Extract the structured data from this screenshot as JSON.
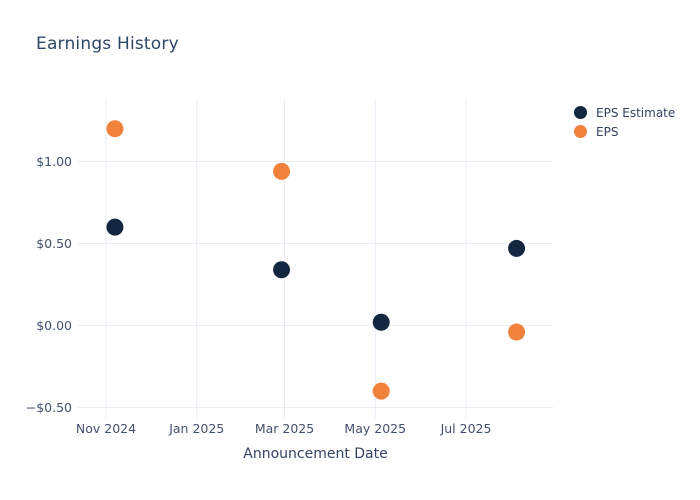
{
  "chart_data": {
    "type": "scatter",
    "title": "Earnings History",
    "xlabel": "Announcement Date",
    "ylabel": "",
    "grid": true,
    "legend_position": "right",
    "marker_size": 17,
    "x_ticks": [
      "2024-11-01",
      "2025-01-01",
      "2025-03-01",
      "2025-05-01",
      "2025-07-01"
    ],
    "x_tick_labels": [
      "Nov 2024",
      "Jan 2025",
      "Mar 2025",
      "May 2025",
      "Jul 2025"
    ],
    "y_ticks": [
      1.0,
      0.5,
      0.0,
      -0.5
    ],
    "y_tick_labels": [
      "$1.00",
      "$0.50",
      "$0.00",
      "−$0.50"
    ],
    "x_range": [
      "2024-10-12",
      "2025-08-28"
    ],
    "y_range": [
      -0.57,
      1.38
    ],
    "series": [
      {
        "name": "EPS Estimate",
        "color": "#142741",
        "x": [
          "2024-11-07",
          "2025-02-27",
          "2025-05-05",
          "2025-08-04"
        ],
        "y": [
          0.6,
          0.34,
          0.02,
          0.47
        ]
      },
      {
        "name": "EPS",
        "color": "#f0823c",
        "x": [
          "2024-11-07",
          "2025-02-27",
          "2025-05-05",
          "2025-08-04"
        ],
        "y": [
          1.2,
          0.94,
          -0.4,
          -0.04
        ]
      }
    ]
  }
}
